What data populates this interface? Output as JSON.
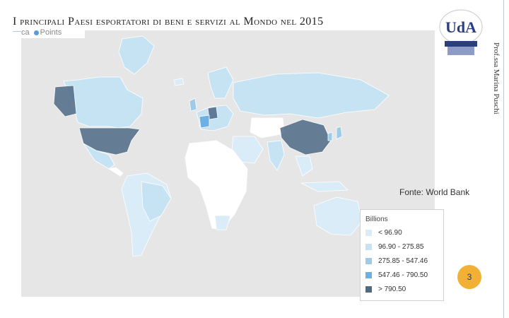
{
  "slide": {
    "title": "I principali Paesi esportatori di beni e servizi al Mondo nel 2015",
    "author": "Prof.ssa Marina Puschi",
    "page_number": "3",
    "source": "Fonte: World Bank"
  },
  "logo": {
    "text": "UdA"
  },
  "map_controls": {
    "prefix": "ca",
    "label": "Points"
  },
  "legend": {
    "title": "Billions",
    "bins": [
      {
        "label": "< 96.90",
        "color": "#d9ecf7"
      },
      {
        "label": "96.90 - 275.85",
        "color": "#c6e3f4"
      },
      {
        "label": "275.85 - 547.46",
        "color": "#9ecbe8"
      },
      {
        "label": "547.46 - 790.50",
        "color": "#6fb0e4"
      },
      {
        "label": "> 790.50",
        "color": "#4f6a87"
      }
    ]
  },
  "colors": {
    "ocean": "#e6e6e6",
    "border": "#ffffff",
    "no_data": "#ffffff"
  }
}
